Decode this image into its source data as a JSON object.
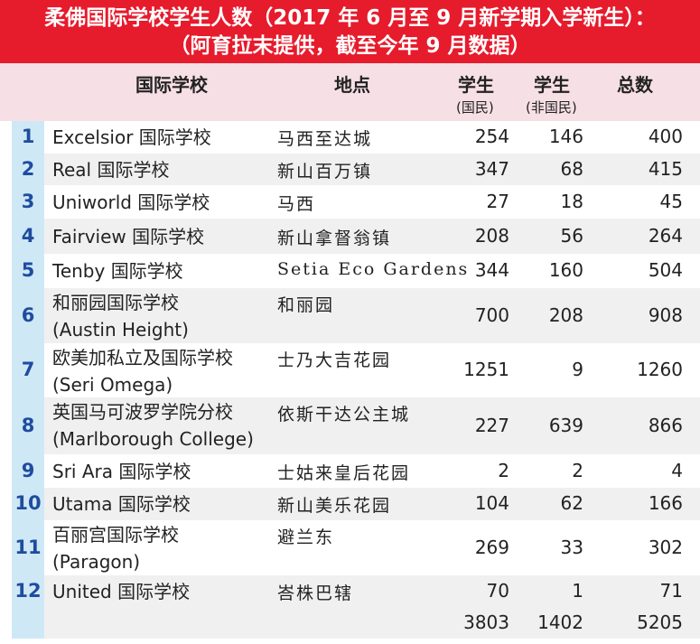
{
  "title": {
    "line1": "柔佛国际学校学生人数（2017 年 6 月至 9 月新学期入学新生）：",
    "line2": "（阿育拉末提供，截至今年 9 月数据）"
  },
  "header": {
    "school": "国际学校",
    "location": "地点",
    "local": "学生",
    "local_sub": "(国民)",
    "foreign": "学生",
    "foreign_sub": "(非国民)",
    "total": "总数"
  },
  "rows": [
    {
      "no": "1",
      "school": [
        "Excelsior 国际学校"
      ],
      "location": "马西至达城",
      "local": "254",
      "foreign": "146",
      "total": "400"
    },
    {
      "no": "2",
      "school": [
        "Real 国际学校"
      ],
      "location": "新山百万镇",
      "local": "347",
      "foreign": "68",
      "total": "415"
    },
    {
      "no": "3",
      "school": [
        "Uniworld 国际学校"
      ],
      "location": "马西",
      "local": "27",
      "foreign": "18",
      "total": "45"
    },
    {
      "no": "4",
      "school": [
        "Fairview 国际学校"
      ],
      "location": "新山拿督翁镇",
      "local": "208",
      "foreign": "56",
      "total": "264"
    },
    {
      "no": "5",
      "school": [
        "Tenby 国际学校"
      ],
      "location": "Setia Eco Gardens",
      "local": "344",
      "foreign": "160",
      "total": "504"
    },
    {
      "no": "6",
      "school": [
        "和丽园国际学校",
        "(Austin Height)"
      ],
      "location": "和丽园",
      "local": "700",
      "foreign": "208",
      "total": "908"
    },
    {
      "no": "7",
      "school": [
        "欧美加私立及国际学校",
        "(Seri Omega)"
      ],
      "location": "士乃大吉花园",
      "local": "1251",
      "foreign": "9",
      "total": "1260"
    },
    {
      "no": "8",
      "school": [
        "英国马可波罗学院分校",
        "(Marlborough College)"
      ],
      "location": "依斯干达公主城",
      "local": "227",
      "foreign": "639",
      "total": "866"
    },
    {
      "no": "9",
      "school": [
        "Sri Ara 国际学校"
      ],
      "location": "士姑来皇后花园",
      "local": "2",
      "foreign": "2",
      "total": "4"
    },
    {
      "no": "10",
      "school": [
        "Utama 国际学校"
      ],
      "location": "新山美乐花园",
      "local": "104",
      "foreign": "62",
      "total": "166"
    },
    {
      "no": "11",
      "school": [
        "百丽宫国际学校",
        "(Paragon)"
      ],
      "location": "避兰东",
      "local": "269",
      "foreign": "33",
      "total": "302"
    },
    {
      "no": "12",
      "school": [
        "United 国际学校"
      ],
      "location": "峇株巴辖",
      "local": "70",
      "foreign": "1",
      "total": "71"
    }
  ],
  "totals": {
    "local": "3803",
    "foreign": "1402",
    "total": "5205"
  }
}
